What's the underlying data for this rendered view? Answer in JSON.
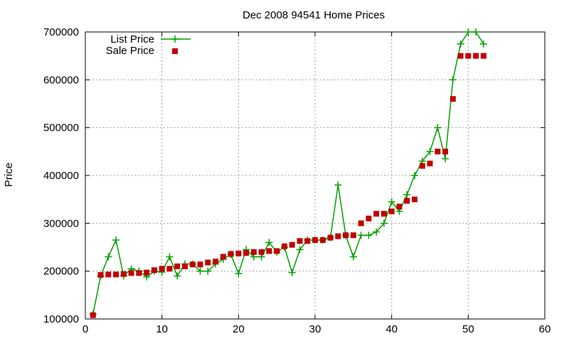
{
  "chart_data": {
    "type": "line",
    "title": "Dec 2008 94541 Home Prices",
    "xlabel": "",
    "ylabel": "Price",
    "xlim": [
      0,
      60
    ],
    "ylim": [
      100000,
      700000
    ],
    "xticks": [
      0,
      10,
      20,
      30,
      40,
      50,
      60
    ],
    "yticks": [
      100000,
      200000,
      300000,
      400000,
      500000,
      600000,
      700000
    ],
    "grid": true,
    "legend_position": "top-left",
    "series": [
      {
        "name": "List Price",
        "style": "line-plus",
        "color": "#00a000",
        "x": [
          1,
          2,
          3,
          4,
          5,
          6,
          7,
          8,
          9,
          10,
          11,
          12,
          13,
          14,
          15,
          16,
          17,
          18,
          19,
          20,
          21,
          22,
          23,
          24,
          25,
          26,
          27,
          28,
          29,
          30,
          31,
          32,
          33,
          34,
          35,
          36,
          37,
          38,
          39,
          40,
          41,
          42,
          43,
          44,
          45,
          46,
          47,
          48,
          49,
          50,
          51,
          52
        ],
        "values": [
          110000,
          190000,
          230000,
          265000,
          190000,
          205000,
          200000,
          188000,
          200000,
          198000,
          230000,
          190000,
          215000,
          215000,
          200000,
          200000,
          215000,
          225000,
          235000,
          195000,
          245000,
          230000,
          230000,
          260000,
          240000,
          250000,
          197000,
          245000,
          265000,
          265000,
          265000,
          270000,
          380000,
          275000,
          230000,
          275000,
          275000,
          282000,
          300000,
          345000,
          325000,
          360000,
          400000,
          430000,
          450000,
          500000,
          435000,
          600000,
          675000,
          700000,
          700000,
          675000
        ]
      },
      {
        "name": "Sale Price",
        "style": "square",
        "color": "#c00000",
        "x": [
          1,
          2,
          3,
          4,
          5,
          6,
          7,
          8,
          9,
          10,
          11,
          12,
          13,
          14,
          15,
          16,
          17,
          18,
          19,
          20,
          21,
          22,
          23,
          24,
          25,
          26,
          27,
          28,
          29,
          30,
          31,
          32,
          33,
          34,
          35,
          36,
          37,
          38,
          39,
          40,
          41,
          42,
          43,
          44,
          45,
          46,
          47,
          48,
          49,
          50,
          51,
          52
        ],
        "values": [
          108000,
          192000,
          193000,
          193000,
          194000,
          196000,
          196000,
          197000,
          202000,
          205000,
          205000,
          210000,
          210000,
          214000,
          214000,
          218000,
          220000,
          230000,
          236000,
          237000,
          238000,
          240000,
          240000,
          242000,
          242000,
          252000,
          255000,
          263000,
          263000,
          265000,
          265000,
          270000,
          273000,
          275000,
          275000,
          300000,
          310000,
          320000,
          320000,
          325000,
          335000,
          347000,
          350000,
          420000,
          425000,
          450000,
          450000,
          560000,
          650000,
          650000,
          650000,
          650000
        ]
      }
    ]
  }
}
